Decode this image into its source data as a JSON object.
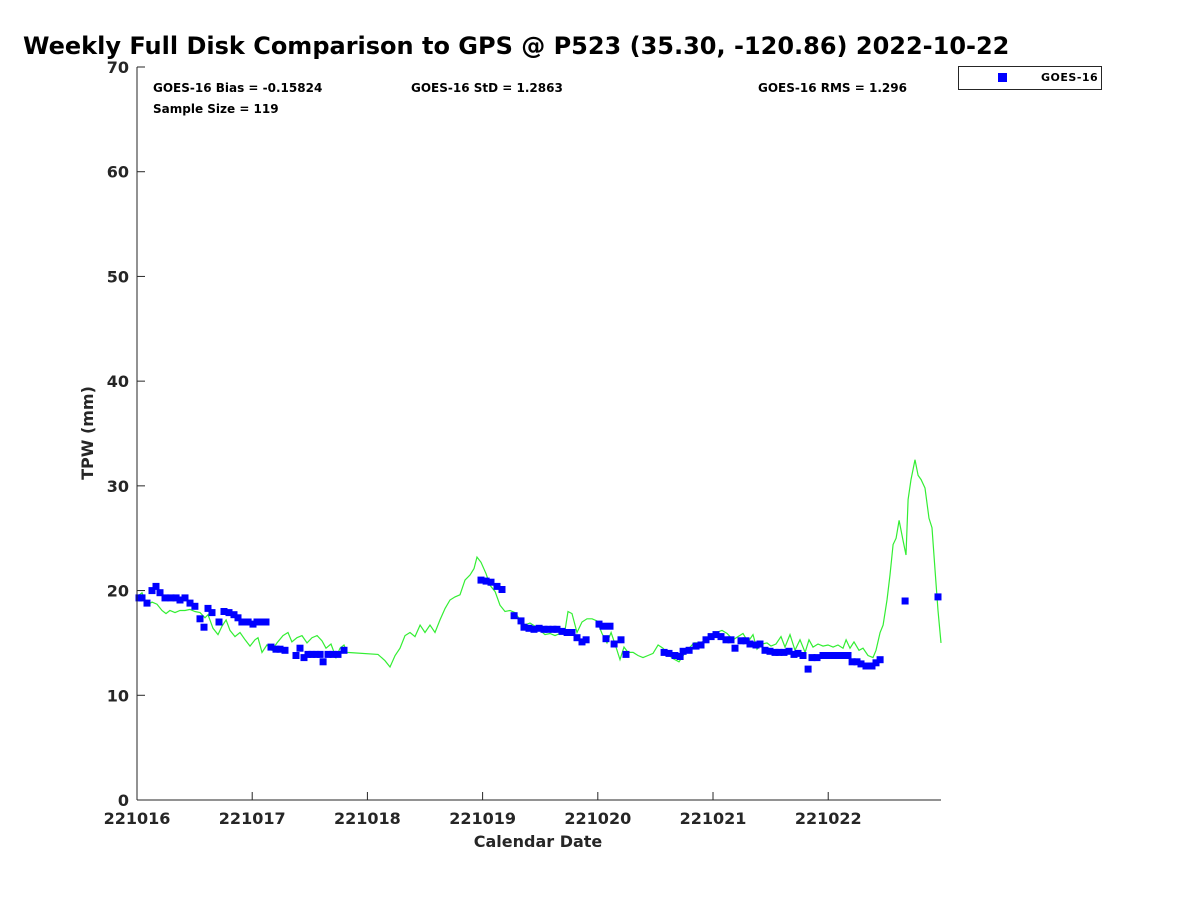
{
  "chart_data": {
    "type": "scatter",
    "title": "Weekly Full Disk Comparison to GPS @ P523 (35.30, -120.86) 2022-10-22",
    "xlabel": "Calendar Date",
    "ylabel": "TPW (mm)",
    "xlim": [
      0,
      6.979
    ],
    "ylim": [
      0,
      70
    ],
    "x_unit": "days since 221016",
    "x_ticks": [
      0,
      1,
      2,
      3,
      4,
      5,
      6
    ],
    "x_tick_labels": [
      "221016",
      "221017",
      "221018",
      "221019",
      "221020",
      "221021",
      "221022"
    ],
    "y_ticks": [
      0,
      10,
      20,
      30,
      40,
      50,
      60,
      70
    ],
    "y_tick_labels": [
      "0",
      "10",
      "20",
      "30",
      "40",
      "50",
      "60",
      "70"
    ],
    "grid": false,
    "legend": {
      "placement": "top-right, outside",
      "entries": [
        "GOES-16"
      ]
    },
    "stats": {
      "bias": "GOES-16 Bias = -0.15824",
      "std": "GOES-16 StD = 1.2863",
      "rms": "GOES-16 RMS = 1.296",
      "sample": "Sample Size = 119"
    },
    "colors": {
      "goes": "#0000ff",
      "gps": "#33ee33"
    },
    "series": [
      {
        "name": "GOES-16",
        "type": "scatter",
        "x": [
          0.017,
          0.043,
          0.087,
          0.13,
          0.165,
          0.2,
          0.243,
          0.295,
          0.339,
          0.373,
          0.417,
          0.46,
          0.503,
          0.547,
          0.582,
          0.616,
          0.651,
          0.712,
          0.755,
          0.799,
          0.842,
          0.877,
          0.911,
          0.964,
          1.007,
          1.042,
          1.085,
          1.12,
          1.163,
          1.207,
          1.241,
          1.285,
          1.38,
          1.415,
          1.45,
          1.484,
          1.519,
          1.554,
          1.589,
          1.615,
          1.658,
          1.701,
          1.745,
          1.797,
          2.986,
          3.03,
          3.073,
          3.125,
          3.168,
          3.273,
          3.333,
          3.359,
          3.403,
          3.446,
          3.49,
          3.533,
          3.568,
          3.611,
          3.646,
          3.689,
          3.733,
          3.776,
          3.819,
          3.863,
          3.898,
          4.01,
          4.045,
          4.071,
          4.106,
          4.141,
          4.201,
          4.245,
          4.575,
          4.618,
          4.67,
          4.714,
          4.74,
          4.792,
          4.852,
          4.896,
          4.939,
          4.983,
          5.026,
          5.069,
          5.113,
          5.156,
          5.191,
          5.243,
          5.286,
          5.321,
          5.373,
          5.408,
          5.451,
          5.495,
          5.538,
          5.573,
          5.616,
          5.66,
          5.703,
          5.738,
          5.781,
          5.825,
          5.859,
          5.903,
          5.955,
          5.998,
          6.042,
          6.085,
          6.128,
          6.172,
          6.207,
          6.25,
          6.285,
          6.328,
          6.38,
          6.415,
          6.45,
          6.667,
          6.953
        ],
        "y": [
          19.3,
          19.3,
          18.8,
          20.0,
          20.4,
          19.8,
          19.3,
          19.3,
          19.3,
          19.1,
          19.3,
          18.8,
          18.5,
          17.3,
          16.5,
          18.3,
          17.9,
          17.0,
          18.0,
          17.9,
          17.7,
          17.4,
          17.0,
          17.0,
          16.8,
          17.0,
          17.0,
          17.0,
          14.6,
          14.4,
          14.4,
          14.3,
          13.8,
          14.5,
          13.6,
          13.9,
          13.9,
          13.9,
          13.9,
          13.2,
          13.9,
          13.9,
          13.9,
          14.3,
          21.0,
          20.9,
          20.8,
          20.4,
          20.1,
          17.6,
          17.1,
          16.5,
          16.4,
          16.3,
          16.4,
          16.3,
          16.3,
          16.3,
          16.3,
          16.1,
          16.0,
          16.0,
          15.5,
          15.1,
          15.3,
          16.8,
          16.6,
          15.4,
          16.6,
          14.9,
          15.3,
          13.9,
          14.1,
          14.0,
          13.8,
          13.7,
          14.2,
          14.3,
          14.7,
          14.8,
          15.3,
          15.6,
          15.8,
          15.6,
          15.3,
          15.3,
          14.5,
          15.2,
          15.2,
          14.9,
          14.8,
          14.9,
          14.3,
          14.2,
          14.1,
          14.1,
          14.1,
          14.2,
          13.9,
          14.0,
          13.8,
          12.5,
          13.6,
          13.6,
          13.8,
          13.8,
          13.8,
          13.8,
          13.8,
          13.8,
          13.2,
          13.2,
          13.0,
          12.8,
          12.8,
          13.1,
          13.4,
          19.0,
          19.4
        ]
      },
      {
        "name": "GPS",
        "type": "line",
        "x": [
          0.0,
          0.043,
          0.087,
          0.13,
          0.174,
          0.217,
          0.252,
          0.286,
          0.33,
          0.373,
          0.417,
          0.46,
          0.503,
          0.547,
          0.59,
          0.616,
          0.66,
          0.703,
          0.738,
          0.773,
          0.807,
          0.851,
          0.894,
          0.938,
          0.981,
          1.024,
          1.05,
          1.085,
          1.128,
          1.172,
          1.215,
          1.267,
          1.311,
          1.345,
          1.389,
          1.432,
          1.476,
          1.519,
          1.563,
          1.606,
          1.641,
          1.684,
          1.727,
          1.762,
          1.797,
          1.823,
          2.092,
          2.153,
          2.196,
          2.24,
          2.283,
          2.326,
          2.37,
          2.413,
          2.457,
          2.5,
          2.543,
          2.587,
          2.63,
          2.674,
          2.717,
          2.76,
          2.804,
          2.847,
          2.891,
          2.925,
          2.951,
          2.986,
          3.03,
          3.064,
          3.108,
          3.151,
          3.194,
          3.238,
          3.281,
          3.325,
          3.368,
          3.411,
          3.455,
          3.498,
          3.542,
          3.585,
          3.628,
          3.672,
          3.715,
          3.741,
          3.776,
          3.819,
          3.863,
          3.906,
          3.95,
          3.993,
          4.036,
          4.08,
          4.115,
          4.158,
          4.193,
          4.227,
          4.262,
          4.306,
          4.349,
          4.392,
          4.436,
          4.479,
          4.523,
          4.566,
          4.609,
          4.653,
          4.705,
          4.748,
          4.792,
          4.835,
          4.878,
          4.931,
          4.974,
          5.026,
          5.078,
          5.122,
          5.174,
          5.217,
          5.26,
          5.304,
          5.347,
          5.382,
          5.425,
          5.469,
          5.503,
          5.547,
          5.59,
          5.625,
          5.668,
          5.712,
          5.755,
          5.799,
          5.833,
          5.868,
          5.911,
          5.955,
          5.998,
          6.042,
          6.085,
          6.128,
          6.155,
          6.189,
          6.224,
          6.267,
          6.302,
          6.345,
          6.389,
          6.415,
          6.45,
          6.476,
          6.51,
          6.536,
          6.563,
          6.589,
          6.615,
          6.649,
          6.675,
          6.693,
          6.719,
          6.753,
          6.78,
          6.806,
          6.84,
          6.875,
          6.901,
          6.927,
          6.953,
          6.979
        ],
        "y": [
          19.4,
          19.8,
          18.6,
          18.9,
          18.7,
          18.1,
          17.8,
          18.1,
          17.9,
          18.1,
          18.1,
          18.2,
          18.0,
          17.9,
          17.4,
          17.7,
          16.4,
          15.8,
          16.6,
          17.2,
          16.2,
          15.6,
          16.0,
          15.3,
          14.7,
          15.3,
          15.5,
          14.1,
          14.8,
          14.3,
          15.0,
          15.7,
          16.0,
          15.1,
          15.5,
          15.7,
          15.0,
          15.5,
          15.7,
          15.2,
          14.5,
          14.9,
          13.6,
          14.5,
          14.8,
          14.1,
          13.9,
          13.3,
          12.7,
          13.8,
          14.5,
          15.7,
          16.0,
          15.6,
          16.7,
          16.0,
          16.7,
          16.0,
          17.2,
          18.3,
          19.1,
          19.4,
          19.6,
          21.0,
          21.5,
          22.1,
          23.2,
          22.7,
          21.6,
          20.5,
          19.9,
          18.6,
          18.0,
          18.1,
          17.9,
          17.2,
          16.7,
          16.9,
          16.6,
          16.2,
          15.8,
          15.9,
          15.7,
          15.9,
          16.2,
          18.0,
          17.8,
          16.0,
          17.0,
          17.3,
          17.3,
          17.1,
          15.9,
          15.0,
          16.0,
          14.6,
          13.4,
          14.6,
          14.1,
          14.1,
          13.8,
          13.6,
          13.8,
          14.0,
          14.8,
          14.5,
          13.9,
          13.5,
          13.2,
          13.9,
          14.5,
          15.0,
          15.0,
          15.2,
          15.7,
          16.0,
          16.2,
          15.9,
          15.3,
          15.6,
          15.9,
          15.1,
          15.8,
          14.4,
          14.9,
          15.0,
          14.7,
          14.9,
          15.6,
          14.6,
          15.8,
          14.3,
          15.3,
          14.1,
          15.3,
          14.6,
          14.9,
          14.7,
          14.8,
          14.6,
          14.8,
          14.5,
          15.3,
          14.5,
          15.1,
          14.3,
          14.5,
          13.8,
          13.6,
          14.3,
          16.0,
          16.7,
          19.1,
          21.5,
          24.4,
          25.0,
          26.7,
          24.8,
          23.4,
          28.7,
          30.6,
          32.5,
          31.0,
          30.6,
          29.8,
          26.9,
          26.0,
          22.0,
          18.1,
          15.0
        ]
      }
    ]
  }
}
